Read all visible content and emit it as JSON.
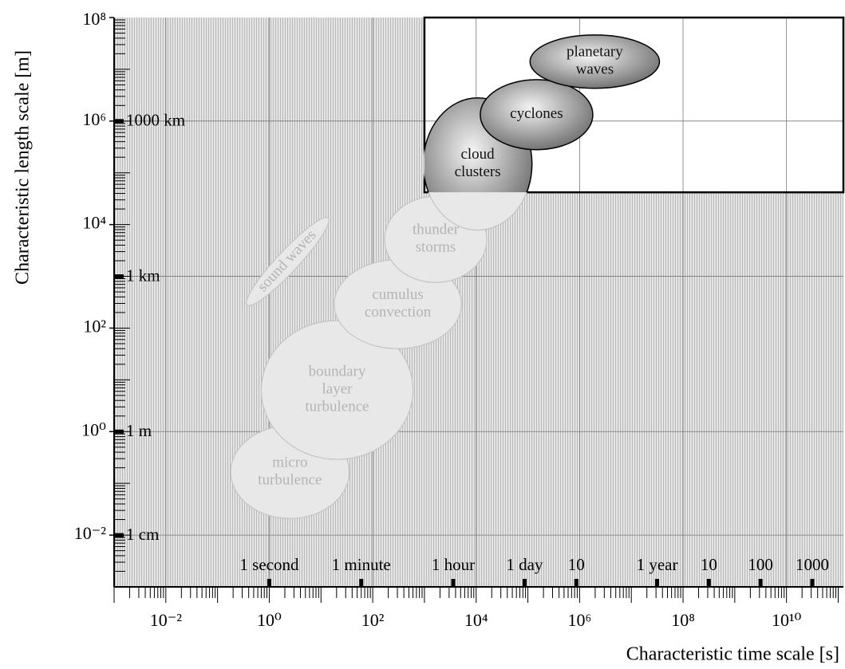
{
  "chart_data": {
    "type": "ellipse",
    "xlabel": "Characteristic time scale [s]",
    "ylabel": "Characteristic length scale [m]",
    "log_x": true,
    "log_y": true,
    "minor_ticks": true,
    "xlim": [
      0.001,
      126000000000
    ],
    "ylim": [
      0.001,
      100000000
    ],
    "xticks": [
      {
        "value": 0.01,
        "label": "10⁻²"
      },
      {
        "value": 1,
        "label": "10⁰"
      },
      {
        "value": 100,
        "label": "10²"
      },
      {
        "value": 10000,
        "label": "10⁴"
      },
      {
        "value": 1000000,
        "label": "10⁶"
      },
      {
        "value": 100000000,
        "label": "10⁸"
      },
      {
        "value": 10000000000,
        "label": "10¹⁰"
      }
    ],
    "yticks": [
      {
        "value": 0.01,
        "label": "10⁻²"
      },
      {
        "value": 1,
        "label": "10⁰"
      },
      {
        "value": 100,
        "label": "10²"
      },
      {
        "value": 10000,
        "label": "10⁴"
      },
      {
        "value": 1000000,
        "label": "10⁶"
      },
      {
        "value": 100000000,
        "label": "10⁸"
      }
    ],
    "length_markers": [
      {
        "value": 1000000,
        "label": "1000 km"
      },
      {
        "value": 1000,
        "label": "1 km"
      },
      {
        "value": 1,
        "label": "1 m"
      },
      {
        "value": 0.01,
        "label": "1 cm"
      }
    ],
    "time_markers": [
      {
        "value": 1,
        "label": "1 second"
      },
      {
        "value": 60,
        "label": "1 minute"
      },
      {
        "value": 3600,
        "label": "1 hour"
      },
      {
        "value": 86400,
        "label": "1 day"
      },
      {
        "value": 864000,
        "label": "10"
      },
      {
        "value": 31500000,
        "label": "1 year"
      },
      {
        "value": 315000000,
        "label": "10"
      },
      {
        "value": 3150000000,
        "label": "100"
      },
      {
        "value": 31500000000,
        "label": "1000"
      }
    ],
    "highlight_box": {
      "x0": 1000,
      "y0": 42000
    },
    "phenomena": [
      {
        "label": [
          "micro",
          "turbulence"
        ],
        "x": [
          0.18,
          35
        ],
        "y": [
          0.021,
          1.3
        ],
        "emphasis": false
      },
      {
        "label": [
          "boundary",
          "layer",
          "turbulence"
        ],
        "x": [
          0.7,
          600
        ],
        "y": [
          0.29,
          140
        ],
        "emphasis": false
      },
      {
        "label": [
          "cumulus",
          "convection"
        ],
        "x": [
          18,
          5200
        ],
        "y": [
          40,
          2100
        ],
        "emphasis": false
      },
      {
        "label": [
          "sound waves"
        ],
        "x": [
          0.16,
          32
        ],
        "y": [
          1200,
          3100
        ],
        "angle": -47,
        "emphasis": false
      },
      {
        "label": [
          "thunder",
          "storms"
        ],
        "x": [
          170,
          16000
        ],
        "y": [
          760,
          35000
        ],
        "emphasis": false
      },
      {
        "label": [
          "cloud",
          "clusters"
        ],
        "x": [
          950,
          120000
        ],
        "y": [
          7800,
          2800000
        ],
        "emphasis": true
      },
      {
        "label": [
          "cyclones"
        ],
        "x": [
          12000,
          1800000
        ],
        "y": [
          280000,
          6300000
        ],
        "emphasis": true
      },
      {
        "label": [
          "planetary",
          "waves"
        ],
        "x": [
          110000,
          35000000
        ],
        "y": [
          4300000,
          46000000
        ],
        "emphasis": true
      }
    ]
  }
}
